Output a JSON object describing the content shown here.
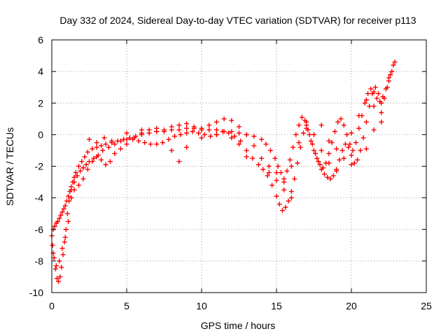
{
  "chart_data": {
    "type": "scatter",
    "title": "Day 332 of 2024, Sidereal Day-to-day VTEC variation (SDTVAR) for receiver p113",
    "xlabel": "GPS time / hours",
    "ylabel": "SDTVAR / TECUs",
    "xlim": [
      0,
      25
    ],
    "ylim": [
      -10,
      6
    ],
    "xticks": [
      0,
      5,
      10,
      15,
      20,
      25
    ],
    "yticks": [
      -10,
      -8,
      -6,
      -4,
      -2,
      0,
      2,
      4,
      6
    ],
    "grid": true,
    "marker": "plus",
    "colors": {
      "series": "#ff0000"
    },
    "series": [
      {
        "name": "SDTVAR",
        "x": [
          0.0,
          0.1,
          0.2,
          0.3,
          0.4,
          0.5,
          0.6,
          0.7,
          0.8,
          0.9,
          1.0,
          1.1,
          1.2,
          1.3,
          1.4,
          1.5,
          1.6,
          1.8,
          2.0,
          2.2,
          2.4,
          2.7,
          3.0,
          3.3,
          3.6,
          4.0,
          4.4,
          4.8,
          5.2,
          5.6,
          6.0,
          6.5,
          7.0,
          7.5,
          8.0,
          8.5,
          9.0,
          9.5,
          10.0,
          10.5,
          11.0,
          11.5,
          12.0,
          12.5,
          13.0,
          13.5,
          14.0,
          14.3,
          14.6,
          14.9,
          15.1,
          15.3,
          15.5,
          15.7,
          15.9,
          16.1,
          16.3,
          16.5,
          16.7,
          16.9,
          17.1,
          17.3,
          17.5,
          17.7,
          17.9,
          18.1,
          18.3,
          18.5,
          18.7,
          18.9,
          19.1,
          19.3,
          19.5,
          19.7,
          19.9,
          20.1,
          20.3,
          20.5,
          20.7,
          20.9,
          21.1,
          21.3,
          21.5,
          21.7,
          21.9,
          22.1,
          22.3,
          22.5,
          22.7,
          22.9
        ],
        "y": [
          -6.4,
          -6.0,
          -5.8,
          -5.6,
          -5.5,
          -5.3,
          -5.1,
          -4.9,
          -4.7,
          -4.5,
          -4.2,
          -3.9,
          -3.6,
          -3.3,
          -3.0,
          -2.7,
          -2.4,
          -2.0,
          -1.7,
          -1.4,
          -1.1,
          -0.9,
          -0.8,
          -0.7,
          -0.6,
          -0.5,
          -0.4,
          -0.3,
          -0.2,
          -0.1,
          0.0,
          0.1,
          0.2,
          0.2,
          0.3,
          0.3,
          0.4,
          0.4,
          0.4,
          0.3,
          0.3,
          0.2,
          0.2,
          0.1,
          0.0,
          -0.1,
          -0.3,
          -0.6,
          -1.0,
          -1.5,
          -2.0,
          -2.4,
          -2.8,
          -2.3,
          -1.6,
          -0.8,
          0.0,
          0.6,
          1.1,
          0.9,
          0.3,
          -0.4,
          -1.0,
          -1.5,
          -1.9,
          -2.1,
          -1.8,
          -1.2,
          -0.5,
          0.2,
          0.8,
          1.0,
          0.6,
          0.0,
          -0.6,
          -1.0,
          -0.5,
          0.4,
          1.2,
          2.0,
          2.6,
          2.9,
          2.7,
          2.3,
          2.1,
          2.4,
          2.9,
          3.4,
          4.0,
          4.6
        ]
      },
      {
        "name": "SDTVAR",
        "x": [
          0.05,
          0.15,
          0.25,
          0.35,
          0.45,
          0.55,
          0.65,
          0.75,
          0.85,
          0.95,
          1.05,
          1.15,
          1.3,
          1.5,
          1.7,
          1.9,
          2.1,
          2.3,
          2.5,
          2.8,
          3.1,
          3.4,
          3.8,
          4.2,
          4.6,
          5.0,
          5.4,
          5.8,
          6.2,
          6.6,
          7.0,
          7.4,
          7.8,
          8.2,
          8.6,
          9.0,
          9.4,
          9.8,
          10.2,
          10.6,
          11.0,
          11.4,
          11.8,
          12.2,
          12.6,
          13.0,
          13.4,
          13.8,
          14.1,
          14.4,
          14.7,
          15.0,
          15.2,
          15.4,
          15.6,
          15.8,
          16.0,
          16.2,
          16.4,
          16.6,
          16.8,
          17.0,
          17.2,
          17.4,
          17.6,
          17.8,
          18.0,
          18.2,
          18.4,
          18.6,
          18.8,
          19.0,
          19.2,
          19.4,
          19.6,
          19.8,
          20.0,
          20.2,
          20.4,
          20.6,
          20.8,
          21.0,
          21.2,
          21.4,
          21.6,
          21.8,
          22.0,
          22.2,
          22.4,
          22.6,
          22.8
        ],
        "y": [
          -7.0,
          -7.8,
          -8.5,
          -9.1,
          -9.3,
          -9.0,
          -8.4,
          -7.6,
          -6.8,
          -6.0,
          -5.0,
          -4.2,
          -3.5,
          -3.0,
          -2.6,
          -2.3,
          -2.1,
          -1.9,
          -1.7,
          -1.5,
          -1.3,
          -1.0,
          -0.8,
          -0.6,
          -0.4,
          -0.3,
          -0.3,
          -0.4,
          -0.5,
          -0.6,
          -0.6,
          -0.5,
          -0.3,
          -0.1,
          0.0,
          0.1,
          0.2,
          0.1,
          0.0,
          -0.1,
          0.0,
          0.2,
          0.1,
          -0.1,
          -0.4,
          -1.0,
          -1.5,
          -1.9,
          -2.2,
          -2.6,
          -3.2,
          -3.9,
          -4.4,
          -4.8,
          -4.6,
          -4.2,
          -3.6,
          -2.8,
          -1.8,
          -0.8,
          0.1,
          0.4,
          0.0,
          -0.6,
          -1.2,
          -1.7,
          -2.2,
          -2.5,
          -2.7,
          -2.8,
          -2.6,
          -2.2,
          -1.6,
          -1.0,
          -0.6,
          -0.8,
          -1.3,
          -1.8,
          -1.6,
          -1.0,
          -0.2,
          0.8,
          1.8,
          2.6,
          3.0,
          2.6,
          2.0,
          2.3,
          3.0,
          3.8,
          4.4
        ]
      },
      {
        "name": "SDTVAR",
        "x": [
          0.1,
          0.3,
          0.5,
          0.7,
          0.9,
          1.1,
          1.3,
          1.5,
          1.8,
          2.1,
          2.4,
          2.7,
          3.0,
          3.3,
          3.6,
          3.9,
          4.2,
          4.6,
          5.0,
          5.5,
          6.0,
          6.5,
          7.0,
          7.5,
          8.0,
          8.5,
          9.0,
          9.5,
          10.0,
          10.5,
          11.0,
          11.5,
          12.0,
          12.5,
          13.0,
          13.5,
          14.0,
          14.5,
          15.0,
          15.5,
          16.0,
          16.5,
          17.0,
          17.5,
          18.0,
          18.5,
          19.0,
          19.5,
          20.0,
          20.5,
          21.0,
          21.5,
          22.0,
          22.5
        ],
        "y": [
          -7.5,
          -8.3,
          -8.0,
          -7.2,
          -6.5,
          -5.5,
          -4.0,
          -3.5,
          -3.2,
          -2.8,
          -2.2,
          -1.7,
          -1.4,
          -1.6,
          -1.9,
          -1.7,
          -1.2,
          -0.9,
          -0.6,
          -0.2,
          0.1,
          0.3,
          0.4,
          0.3,
          0.5,
          0.6,
          0.7,
          0.5,
          0.3,
          0.6,
          0.8,
          1.0,
          0.9,
          0.5,
          0.0,
          -0.7,
          -1.5,
          -2.0,
          -2.4,
          -3.0,
          -2.0,
          -0.5,
          0.6,
          0.0,
          -1.0,
          -1.8,
          -2.3,
          -1.5,
          0.1,
          1.2,
          2.2,
          1.8,
          1.4,
          3.6
        ]
      },
      {
        "name": "SDTVAR",
        "x": [
          2.5,
          3.0,
          3.5,
          4.0,
          5.0,
          6.0,
          7.0,
          8.0,
          8.5,
          9.0,
          10.0,
          11.0,
          12.0,
          12.5,
          13.0,
          14.5,
          15.0,
          15.5,
          16.0,
          17.0,
          18.0,
          18.5,
          19.0,
          20.0,
          21.0,
          21.5,
          22.0
        ],
        "y": [
          -0.3,
          -0.5,
          -0.2,
          -0.4,
          0.1,
          0.3,
          0.2,
          -1.0,
          -1.7,
          -0.8,
          -0.2,
          0.0,
          -0.2,
          -0.6,
          -1.4,
          -2.4,
          -2.9,
          -3.5,
          -4.0,
          0.8,
          0.6,
          -0.4,
          -0.9,
          -1.9,
          -0.9,
          0.3,
          0.8
        ]
      }
    ]
  }
}
